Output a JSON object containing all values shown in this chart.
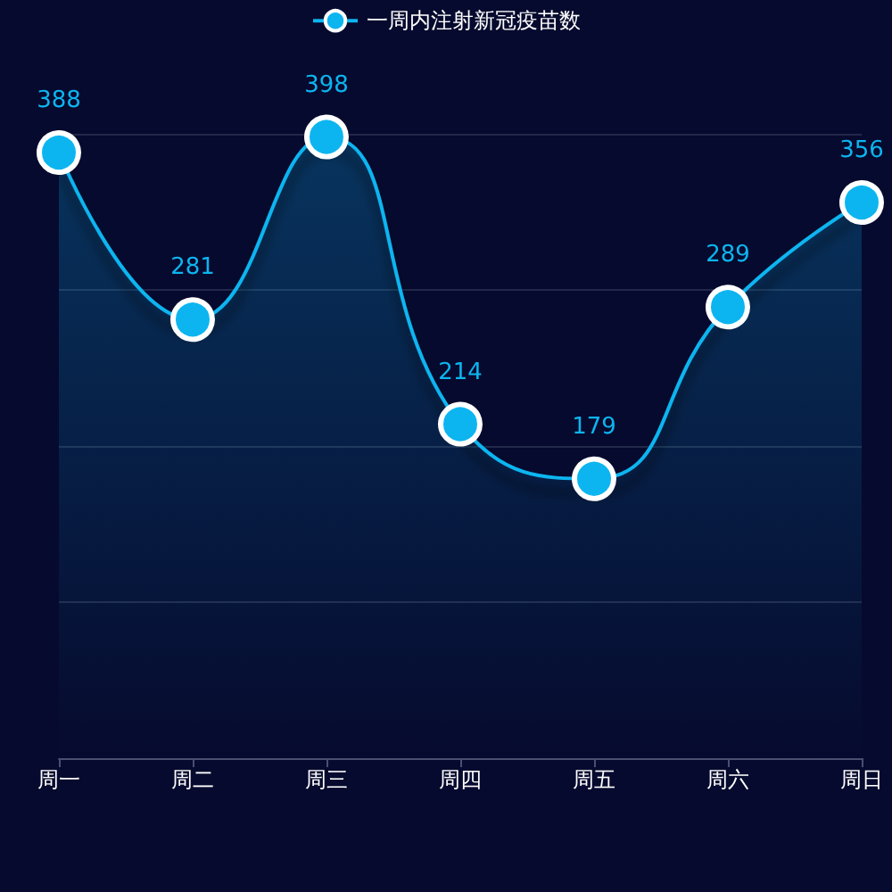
{
  "chart_data": {
    "type": "area",
    "categories": [
      "周一",
      "周二",
      "周三",
      "周四",
      "周五",
      "周六",
      "周日"
    ],
    "series": [
      {
        "name": "一周内注射新冠疫苗数",
        "color": "#0cb5f0",
        "values": [
          388,
          281,
          398,
          214,
          179,
          289,
          356
        ]
      }
    ],
    "ylim": [
      0,
      400
    ],
    "yticks": [
      {
        "value": 0,
        "label": null
      },
      {
        "value": 100,
        "label": null
      },
      {
        "value": 200,
        "label": null
      },
      {
        "value": 300,
        "label": null
      },
      {
        "value": 400,
        "label": null
      }
    ],
    "tick_labels": "x",
    "grid": "y",
    "legend": "top",
    "marker": "circle",
    "line_style": "solid",
    "data_labels": true
  }
}
